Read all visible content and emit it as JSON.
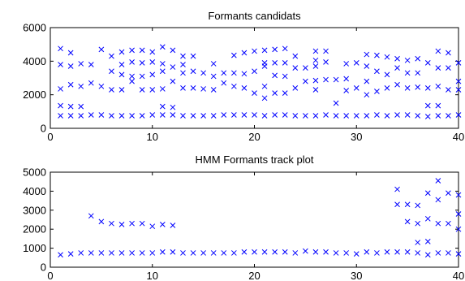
{
  "chart_data": [
    {
      "type": "scatter",
      "title": "Formants candidats",
      "xlabel": "",
      "ylabel": "",
      "xlim": [
        0,
        40
      ],
      "ylim": [
        0,
        6000
      ],
      "xticks": [
        0,
        10,
        20,
        30,
        40
      ],
      "yticks": [
        0,
        2000,
        4000,
        6000
      ],
      "marker": "x",
      "marker_color": "#0000ff",
      "grid": false,
      "series": [
        {
          "points": [
            [
              1,
              750
            ],
            [
              1,
              1350
            ],
            [
              1,
              2350
            ],
            [
              1,
              3800
            ],
            [
              1,
              4750
            ],
            [
              2,
              750
            ],
            [
              2,
              1300
            ],
            [
              2,
              2600
            ],
            [
              2,
              3700
            ],
            [
              2,
              4500
            ],
            [
              3,
              750
            ],
            [
              3,
              1300
            ],
            [
              3,
              2500
            ],
            [
              3,
              3850
            ],
            [
              4,
              800
            ],
            [
              4,
              2700
            ],
            [
              4,
              3800
            ],
            [
              5,
              800
            ],
            [
              5,
              2500
            ],
            [
              5,
              4700
            ],
            [
              6,
              750
            ],
            [
              6,
              2300
            ],
            [
              6,
              3400
            ],
            [
              6,
              4300
            ],
            [
              7,
              750
            ],
            [
              7,
              2300
            ],
            [
              7,
              3200
            ],
            [
              7,
              3800
            ],
            [
              7,
              4550
            ],
            [
              8,
              750
            ],
            [
              8,
              2800
            ],
            [
              8,
              3100
            ],
            [
              8,
              3950
            ],
            [
              8,
              4650
            ],
            [
              9,
              750
            ],
            [
              9,
              2300
            ],
            [
              9,
              3100
            ],
            [
              9,
              3900
            ],
            [
              9,
              4650
            ],
            [
              10,
              800
            ],
            [
              10,
              2300
            ],
            [
              10,
              3200
            ],
            [
              10,
              3950
            ],
            [
              10,
              4550
            ],
            [
              11,
              800
            ],
            [
              11,
              1300
            ],
            [
              11,
              2350
            ],
            [
              11,
              3400
            ],
            [
              11,
              3850
            ],
            [
              11,
              4850
            ],
            [
              12,
              800
            ],
            [
              12,
              1250
            ],
            [
              12,
              2800
            ],
            [
              12,
              3650
            ],
            [
              12,
              4650
            ],
            [
              13,
              750
            ],
            [
              13,
              2400
            ],
            [
              13,
              3300
            ],
            [
              13,
              3800
            ],
            [
              13,
              4300
            ],
            [
              14,
              750
            ],
            [
              14,
              2400
            ],
            [
              14,
              3400
            ],
            [
              14,
              4300
            ],
            [
              15,
              750
            ],
            [
              15,
              2350
            ],
            [
              15,
              3300
            ],
            [
              16,
              750
            ],
            [
              16,
              2300
            ],
            [
              16,
              3100
            ],
            [
              16,
              3850
            ],
            [
              17,
              800
            ],
            [
              17,
              2700
            ],
            [
              17,
              3300
            ],
            [
              18,
              800
            ],
            [
              18,
              2500
            ],
            [
              18,
              3300
            ],
            [
              18,
              4350
            ],
            [
              19,
              800
            ],
            [
              19,
              2400
            ],
            [
              19,
              3250
            ],
            [
              19,
              4500
            ],
            [
              20,
              800
            ],
            [
              20,
              2100
            ],
            [
              20,
              3400
            ],
            [
              20,
              4600
            ],
            [
              21,
              750
            ],
            [
              21,
              1800
            ],
            [
              21,
              2500
            ],
            [
              21,
              3700
            ],
            [
              21,
              3900
            ],
            [
              21,
              4650
            ],
            [
              22,
              800
            ],
            [
              22,
              2100
            ],
            [
              22,
              3150
            ],
            [
              22,
              3900
            ],
            [
              22,
              4700
            ],
            [
              23,
              800
            ],
            [
              23,
              2100
            ],
            [
              23,
              3100
            ],
            [
              23,
              3900
            ],
            [
              23,
              4750
            ],
            [
              24,
              750
            ],
            [
              24,
              2400
            ],
            [
              24,
              3600
            ],
            [
              24,
              4300
            ],
            [
              25,
              750
            ],
            [
              25,
              2800
            ],
            [
              25,
              3600
            ],
            [
              26,
              750
            ],
            [
              26,
              2300
            ],
            [
              26,
              2850
            ],
            [
              26,
              3700
            ],
            [
              26,
              4050
            ],
            [
              26,
              4600
            ],
            [
              27,
              800
            ],
            [
              27,
              2900
            ],
            [
              27,
              3950
            ],
            [
              27,
              4600
            ],
            [
              28,
              750
            ],
            [
              28,
              1500
            ],
            [
              28,
              2900
            ],
            [
              29,
              750
            ],
            [
              29,
              2250
            ],
            [
              29,
              2950
            ],
            [
              29,
              3850
            ],
            [
              30,
              750
            ],
            [
              30,
              2400
            ],
            [
              30,
              3900
            ],
            [
              31,
              750
            ],
            [
              31,
              2000
            ],
            [
              31,
              2800
            ],
            [
              31,
              3700
            ],
            [
              31,
              4400
            ],
            [
              32,
              800
            ],
            [
              32,
              2200
            ],
            [
              32,
              3400
            ],
            [
              32,
              4350
            ],
            [
              33,
              750
            ],
            [
              33,
              2400
            ],
            [
              33,
              3200
            ],
            [
              33,
              4250
            ],
            [
              34,
              800
            ],
            [
              34,
              2600
            ],
            [
              34,
              3600
            ],
            [
              34,
              4150
            ],
            [
              35,
              800
            ],
            [
              35,
              2400
            ],
            [
              35,
              3300
            ],
            [
              35,
              4050
            ],
            [
              36,
              750
            ],
            [
              36,
              2450
            ],
            [
              36,
              3300
            ],
            [
              36,
              4150
            ],
            [
              37,
              700
            ],
            [
              37,
              1350
            ],
            [
              37,
              2400
            ],
            [
              37,
              3900
            ],
            [
              38,
              750
            ],
            [
              38,
              1350
            ],
            [
              38,
              2500
            ],
            [
              38,
              3600
            ],
            [
              38,
              4600
            ],
            [
              39,
              750
            ],
            [
              39,
              2300
            ],
            [
              39,
              3600
            ],
            [
              39,
              4500
            ],
            [
              40,
              800
            ],
            [
              40,
              2300
            ],
            [
              40,
              2800
            ],
            [
              40,
              3900
            ],
            [
              41,
              700
            ],
            [
              41,
              1300
            ],
            [
              41,
              2000
            ],
            [
              41,
              2900
            ],
            [
              41,
              3800
            ]
          ]
        }
      ]
    },
    {
      "type": "scatter",
      "title": "HMM Formants track plot",
      "xlabel": "",
      "ylabel": "",
      "xlim": [
        0,
        40
      ],
      "ylim": [
        0,
        5000
      ],
      "xticks": [
        0,
        10,
        20,
        30,
        40
      ],
      "yticks": [
        0,
        1000,
        2000,
        3000,
        4000,
        5000
      ],
      "marker": "x",
      "marker_color": "#0000ff",
      "grid": false,
      "series": [
        {
          "points": [
            [
              1,
              650
            ],
            [
              2,
              700
            ],
            [
              3,
              750
            ],
            [
              4,
              750
            ],
            [
              5,
              750
            ],
            [
              6,
              750
            ],
            [
              7,
              750
            ],
            [
              8,
              750
            ],
            [
              9,
              750
            ],
            [
              10,
              750
            ],
            [
              11,
              800
            ],
            [
              12,
              800
            ],
            [
              13,
              750
            ],
            [
              14,
              750
            ],
            [
              15,
              750
            ],
            [
              16,
              750
            ],
            [
              17,
              750
            ],
            [
              18,
              750
            ],
            [
              19,
              800
            ],
            [
              20,
              800
            ],
            [
              21,
              800
            ],
            [
              22,
              800
            ],
            [
              23,
              800
            ],
            [
              24,
              750
            ],
            [
              25,
              850
            ],
            [
              26,
              800
            ],
            [
              27,
              800
            ],
            [
              28,
              750
            ],
            [
              29,
              750
            ],
            [
              30,
              700
            ],
            [
              31,
              800
            ],
            [
              32,
              750
            ],
            [
              33,
              800
            ],
            [
              34,
              800
            ],
            [
              35,
              800
            ],
            [
              36,
              750
            ],
            [
              37,
              650
            ],
            [
              38,
              750
            ],
            [
              39,
              750
            ],
            [
              40,
              700
            ],
            [
              4,
              2700
            ],
            [
              5,
              2400
            ],
            [
              6,
              2300
            ],
            [
              7,
              2250
            ],
            [
              8,
              2300
            ],
            [
              9,
              2300
            ],
            [
              10,
              2150
            ],
            [
              11,
              2250
            ],
            [
              12,
              2200
            ],
            [
              34,
              4100
            ],
            [
              34,
              3300
            ],
            [
              35,
              3300
            ],
            [
              35,
              2400
            ],
            [
              36,
              3250
            ],
            [
              36,
              2300
            ],
            [
              36,
              1300
            ],
            [
              37,
              3900
            ],
            [
              37,
              2550
            ],
            [
              37,
              1350
            ],
            [
              38,
              4550
            ],
            [
              38,
              3550
            ],
            [
              38,
              2300
            ],
            [
              39,
              3900
            ],
            [
              39,
              2300
            ],
            [
              40,
              3800
            ],
            [
              40,
              2800
            ],
            [
              40,
              2000
            ],
            [
              41,
              3900
            ],
            [
              41,
              2800
            ],
            [
              41,
              2000
            ],
            [
              41,
              900
            ]
          ]
        }
      ]
    }
  ]
}
